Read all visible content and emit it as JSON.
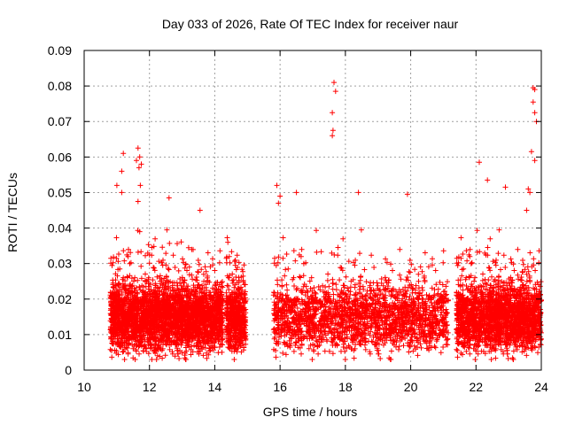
{
  "chart_data": {
    "type": "scatter",
    "title": "Day 033 of 2026, Rate Of TEC Index for receiver naur",
    "xlabel": "GPS time / hours",
    "ylabel": "ROTI / TECUs",
    "xlim": [
      10,
      24
    ],
    "ylim": [
      0,
      0.09
    ],
    "xticks": [
      "10",
      "12",
      "14",
      "16",
      "18",
      "20",
      "22",
      "24"
    ],
    "yticks": [
      "0",
      "0.01",
      "0.02",
      "0.03",
      "0.04",
      "0.05",
      "0.06",
      "0.07",
      "0.08",
      "0.09"
    ],
    "grid": true,
    "marker": "+",
    "color": "#ff0000",
    "series": [
      {
        "name": "ROTI",
        "segments": [
          [
            10.8,
            14.25
          ],
          [
            14.35,
            14.95
          ],
          [
            15.8,
            21.15
          ],
          [
            21.4,
            24.0
          ]
        ],
        "typical_range": [
          0.005,
          0.025
        ],
        "notable_points": [
          {
            "x": 11.2,
            "y": 0.061
          },
          {
            "x": 11.15,
            "y": 0.056
          },
          {
            "x": 11.0,
            "y": 0.052
          },
          {
            "x": 11.15,
            "y": 0.05
          },
          {
            "x": 11.6,
            "y": 0.059
          },
          {
            "x": 11.65,
            "y": 0.0625
          },
          {
            "x": 11.7,
            "y": 0.06
          },
          {
            "x": 11.75,
            "y": 0.058
          },
          {
            "x": 11.68,
            "y": 0.057
          },
          {
            "x": 11.72,
            "y": 0.052
          },
          {
            "x": 11.65,
            "y": 0.0475
          },
          {
            "x": 11.7,
            "y": 0.039
          },
          {
            "x": 12.6,
            "y": 0.0485
          },
          {
            "x": 13.55,
            "y": 0.045
          },
          {
            "x": 14.4,
            "y": 0.036
          },
          {
            "x": 15.9,
            "y": 0.052
          },
          {
            "x": 16.0,
            "y": 0.049
          },
          {
            "x": 15.95,
            "y": 0.047
          },
          {
            "x": 16.5,
            "y": 0.05
          },
          {
            "x": 17.65,
            "y": 0.081
          },
          {
            "x": 17.7,
            "y": 0.0785
          },
          {
            "x": 17.6,
            "y": 0.0725
          },
          {
            "x": 17.62,
            "y": 0.0675
          },
          {
            "x": 17.6,
            "y": 0.066
          },
          {
            "x": 18.4,
            "y": 0.05
          },
          {
            "x": 19.9,
            "y": 0.0495
          },
          {
            "x": 22.1,
            "y": 0.0585
          },
          {
            "x": 22.35,
            "y": 0.0535
          },
          {
            "x": 22.9,
            "y": 0.0515
          },
          {
            "x": 23.75,
            "y": 0.0795
          },
          {
            "x": 23.8,
            "y": 0.079
          },
          {
            "x": 23.75,
            "y": 0.0755
          },
          {
            "x": 23.8,
            "y": 0.0725
          },
          {
            "x": 23.85,
            "y": 0.07
          },
          {
            "x": 23.7,
            "y": 0.0615
          },
          {
            "x": 23.8,
            "y": 0.059
          },
          {
            "x": 23.6,
            "y": 0.051
          },
          {
            "x": 23.65,
            "y": 0.05
          },
          {
            "x": 23.55,
            "y": 0.045
          }
        ]
      }
    ]
  }
}
